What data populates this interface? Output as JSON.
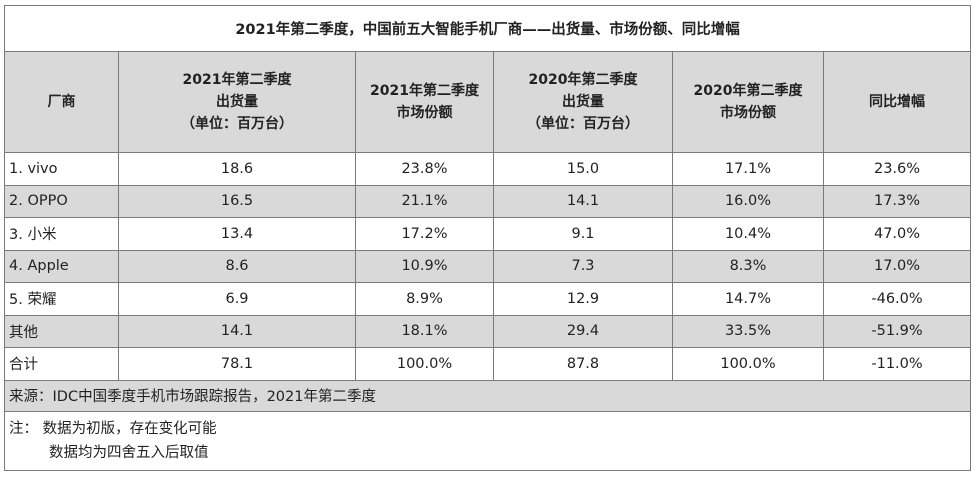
{
  "title": "2021年第二季度，中国前五大智能手机厂商——出货量、市场份额、同比增幅",
  "headers": [
    [
      "厂商"
    ],
    [
      "2021年第二季度",
      "出货量",
      "（单位：百万台）"
    ],
    [
      "2021年第二季度",
      "市场份额"
    ],
    [
      "2020年第二季度",
      "出货量",
      "（单位：百万台）"
    ],
    [
      "2020年第二季度",
      "市场份额"
    ],
    [
      "同比增幅"
    ]
  ],
  "rows": [
    [
      "1. vivo",
      "18.6",
      "23.8%",
      "15.0",
      "17.1%",
      "23.6%"
    ],
    [
      "2. OPPO",
      "16.5",
      "21.1%",
      "14.1",
      "16.0%",
      "17.3%"
    ],
    [
      "3. 小米",
      "13.4",
      "17.2%",
      "9.1",
      "10.4%",
      "47.0%"
    ],
    [
      "4. Apple",
      "8.6",
      "10.9%",
      "7.3",
      "8.3%",
      "17.0%"
    ],
    [
      "5. 荣耀",
      "6.9",
      "8.9%",
      "12.9",
      "14.7%",
      "-46.0%"
    ],
    [
      "其他",
      "14.1",
      "18.1%",
      "29.4",
      "33.5%",
      "-51.9%"
    ],
    [
      "合计",
      "78.1",
      "100.0%",
      "87.8",
      "100.0%",
      "-11.0%"
    ]
  ],
  "source": "来源：IDC中国季度手机市场跟踪报告，2021年第二季度",
  "notes": {
    "line1": "注：  数据为初版，存在变化可能",
    "line2": "数据均为四舍五入后取值"
  }
}
